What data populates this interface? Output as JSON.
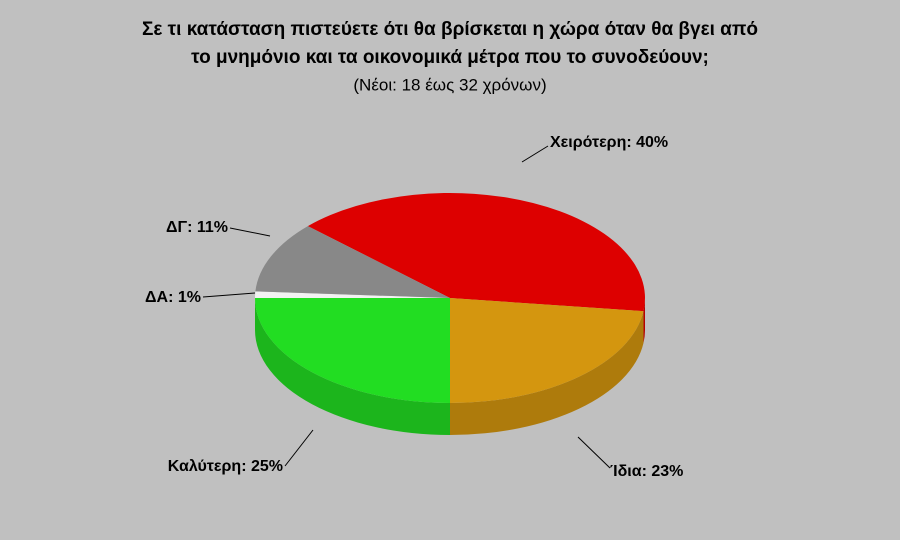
{
  "chart_data": {
    "type": "pie",
    "title": [
      "Σε τι κατάσταση πιστεύετε ότι θα βρίσκεται η χώρα όταν θα βγει από",
      "το μνημόνιο και τα οικονομικά μέτρα που το συνοδεύουν;"
    ],
    "subtitle": "(Νέοι: 18 έως 32 χρόνων)",
    "values": [
      40,
      23,
      25,
      1,
      11
    ],
    "value_labels": [
      "Χειρότερη: 40%",
      "Ίδια: 23%",
      "Καλύτερη: 25%",
      "ΔΑ: 1%",
      "ΔΓ: 11%"
    ],
    "colors": [
      "#dd0000",
      "#d4960f",
      "#22dd22",
      "#f2f2f2",
      "#888888"
    ]
  }
}
